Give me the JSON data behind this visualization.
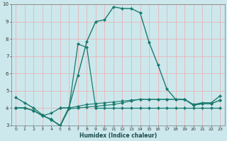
{
  "xlabel": "Humidex (Indice chaleur)",
  "xlim": [
    -0.5,
    23.5
  ],
  "ylim": [
    3,
    10
  ],
  "xticks": [
    0,
    1,
    2,
    3,
    4,
    5,
    6,
    7,
    8,
    9,
    10,
    11,
    12,
    13,
    14,
    15,
    16,
    17,
    18,
    19,
    20,
    21,
    22,
    23
  ],
  "yticks": [
    3,
    4,
    5,
    6,
    7,
    8,
    9,
    10
  ],
  "bg_color": "#cce8ec",
  "line_color": "#1a7a6e",
  "grid_color_major": "#e8b4b8",
  "line1_y": [
    4.6,
    4.3,
    4.0,
    3.6,
    3.3,
    3.0,
    4.05,
    5.9,
    7.85,
    9.0,
    9.1,
    9.85,
    9.75,
    9.75,
    9.5,
    7.8,
    6.5,
    5.1,
    4.5,
    4.5,
    4.2,
    4.3,
    4.3,
    4.7
  ],
  "line2_y": [
    4.0,
    4.0,
    3.85,
    3.55,
    3.35,
    2.95,
    4.0,
    4.1,
    4.2,
    4.25,
    4.3,
    4.35,
    4.4,
    4.45,
    4.5,
    4.5,
    4.5,
    4.5,
    4.5,
    4.5,
    4.15,
    4.25,
    4.25,
    4.45
  ],
  "line3_y": [
    4.0,
    4.0,
    3.85,
    3.55,
    3.7,
    4.0,
    4.0,
    7.7,
    7.5,
    4.0,
    4.0,
    4.0,
    4.0,
    4.0,
    4.0,
    4.0,
    4.0,
    4.0,
    4.0,
    4.0,
    4.0,
    4.0,
    4.0,
    4.0
  ],
  "line4_y": [
    4.0,
    4.0,
    3.85,
    3.55,
    3.35,
    2.95,
    3.95,
    4.0,
    4.05,
    4.1,
    4.15,
    4.2,
    4.3,
    4.4,
    4.5,
    4.5,
    4.5,
    4.5,
    4.5,
    4.5,
    4.15,
    4.25,
    4.25,
    4.45
  ],
  "x": [
    0,
    1,
    2,
    3,
    4,
    5,
    6,
    7,
    8,
    9,
    10,
    11,
    12,
    13,
    14,
    15,
    16,
    17,
    18,
    19,
    20,
    21,
    22,
    23
  ]
}
